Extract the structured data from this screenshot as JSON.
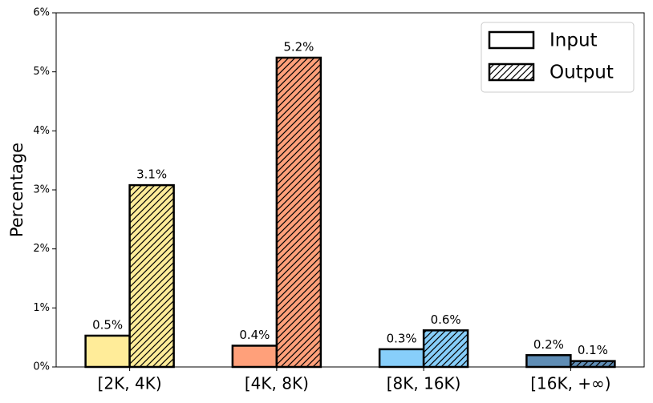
{
  "chart_data": {
    "type": "bar",
    "y_label": "Percentage",
    "categories": [
      "[2K, 4K)",
      "[4K, 8K)",
      "[8K, 16K)",
      "[16K, +∞)"
    ],
    "colors": [
      "#ffec99",
      "#ffa07a",
      "#87cefa",
      "#5f8db5"
    ],
    "series": [
      {
        "name": "Input",
        "hatch": false,
        "values": [
          0.53,
          0.36,
          0.3,
          0.2
        ],
        "value_labels": [
          "0.5%",
          "0.4%",
          "0.3%",
          "0.2%"
        ]
      },
      {
        "name": "Output",
        "hatch": true,
        "values": [
          3.08,
          5.24,
          0.62,
          0.1
        ],
        "value_labels": [
          "3.1%",
          "5.2%",
          "0.6%",
          "0.1%"
        ]
      }
    ],
    "ylim": [
      0,
      6
    ],
    "yticks": [
      {
        "value": 0,
        "label": "0%"
      },
      {
        "value": 1,
        "label": "1%"
      },
      {
        "value": 2,
        "label": "2%"
      },
      {
        "value": 3,
        "label": "3%"
      },
      {
        "value": 4,
        "label": "4%"
      },
      {
        "value": 5,
        "label": "5%"
      },
      {
        "value": 6,
        "label": "6%"
      }
    ],
    "legend": "upper right"
  }
}
